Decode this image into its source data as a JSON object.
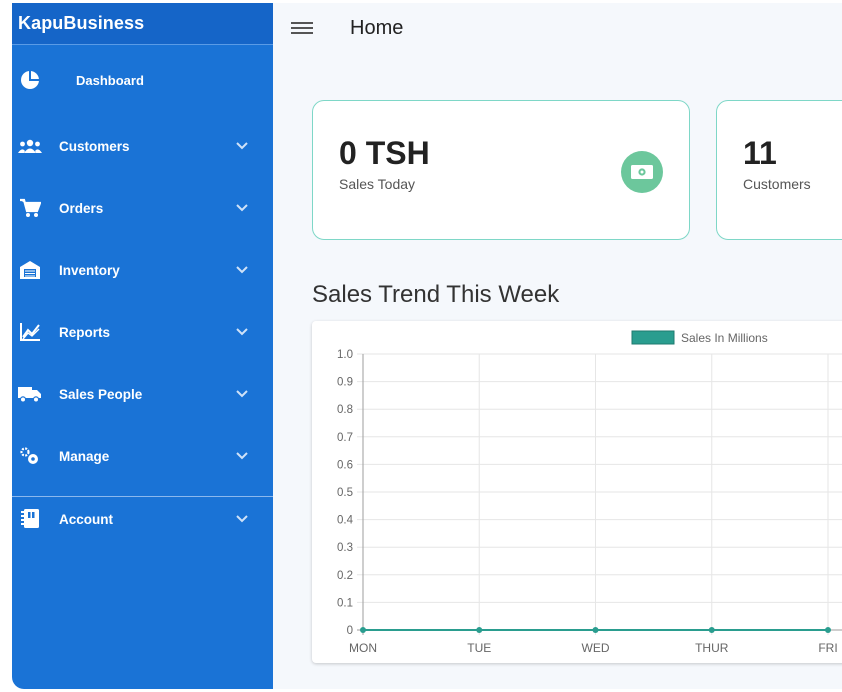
{
  "app": {
    "brand": "KapuBusiness"
  },
  "sidebar": {
    "items": [
      {
        "label": "Dashboard",
        "icon": "pie-chart-icon"
      },
      {
        "label": "Customers",
        "icon": "people-icon"
      },
      {
        "label": "Orders",
        "icon": "cart-icon"
      },
      {
        "label": "Inventory",
        "icon": "warehouse-icon"
      },
      {
        "label": "Reports",
        "icon": "trend-chart-icon"
      },
      {
        "label": "Sales People",
        "icon": "truck-icon"
      },
      {
        "label": "Manage",
        "icon": "gears-icon"
      },
      {
        "label": "Account",
        "icon": "contacts-book-icon"
      }
    ]
  },
  "header": {
    "title": "Home"
  },
  "cards": [
    {
      "value": "0 TSH",
      "label": "Sales Today",
      "icon": "money-icon"
    },
    {
      "value": "11",
      "label": "Customers"
    }
  ],
  "section": {
    "title": "Sales Trend This Week"
  },
  "colors": {
    "sidebar": "#1a73d6",
    "accent": "#2a9d8f",
    "card_border": "#7ed7c7",
    "money_button": "#6cc79c"
  },
  "chart_data": {
    "type": "line",
    "categories": [
      "MON",
      "TUE",
      "WED",
      "THUR",
      "FRI"
    ],
    "series": [
      {
        "name": "Sales In Millions",
        "values": [
          0,
          0,
          0,
          0,
          0
        ]
      }
    ],
    "ylim": [
      0,
      1.0
    ],
    "yticks": [
      "0",
      "0.1",
      "0.2",
      "0.3",
      "0.4",
      "0.5",
      "0.6",
      "0.7",
      "0.8",
      "0.9",
      "1.0"
    ],
    "grid": true,
    "legend": "top"
  }
}
